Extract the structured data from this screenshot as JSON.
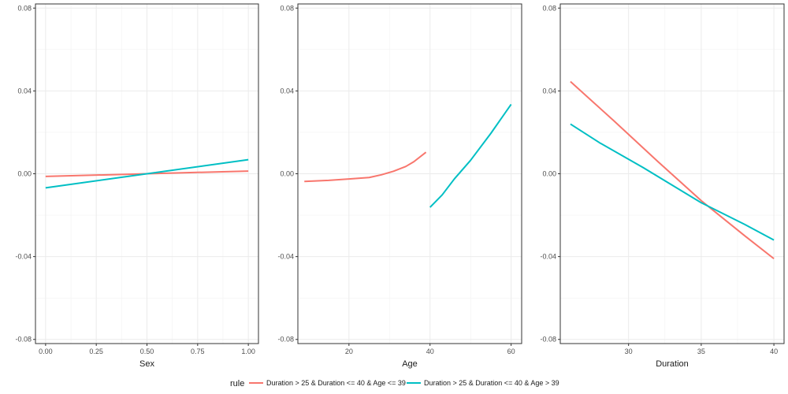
{
  "chart_data": [
    {
      "type": "line",
      "xlabel": "Sex",
      "ylabel": "",
      "xlim": [
        -0.05,
        1.05
      ],
      "ylim": [
        -0.082,
        0.082
      ],
      "xticks": [
        "0.00",
        "0.25",
        "0.50",
        "0.75",
        "1.00"
      ],
      "xtick_values": [
        0,
        0.25,
        0.5,
        0.75,
        1.0
      ],
      "yticks": [
        "-0.08",
        "-0.04",
        "0.00",
        "0.04",
        "0.08"
      ],
      "ytick_values": [
        -0.08,
        -0.04,
        0.0,
        0.04,
        0.08
      ],
      "grid": true,
      "series": [
        {
          "name": "Duration > 25 & Duration <= 40 & Age <= 39",
          "color": "#F8766D",
          "x": [
            0,
            1
          ],
          "y": [
            -0.0013,
            0.0013
          ]
        },
        {
          "name": "Duration > 25 & Duration <= 40 & Age > 39",
          "color": "#00BFC4",
          "x": [
            0,
            1
          ],
          "y": [
            -0.0068,
            0.0068
          ]
        }
      ]
    },
    {
      "type": "line",
      "xlabel": "Age",
      "ylabel": "",
      "xlim": [
        7.4,
        62.6
      ],
      "ylim": [
        -0.082,
        0.082
      ],
      "xticks": [
        "20",
        "40",
        "60"
      ],
      "xtick_values": [
        20,
        40,
        60
      ],
      "yticks": [
        "-0.08",
        "-0.04",
        "0.00",
        "0.04",
        "0.08"
      ],
      "ytick_values": [
        -0.08,
        -0.04,
        0.0,
        0.04,
        0.08
      ],
      "grid": true,
      "series": [
        {
          "name": "Duration > 25 & Duration <= 40 & Age <= 39",
          "color": "#F8766D",
          "x": [
            9,
            15,
            20,
            25,
            28,
            31,
            34,
            36,
            39
          ],
          "y": [
            -0.0037,
            -0.0032,
            -0.0025,
            -0.0018,
            -0.0005,
            0.0012,
            0.0035,
            0.0058,
            0.0104
          ]
        },
        {
          "name": "Duration > 25 & Duration <= 40 & Age > 39",
          "color": "#00BFC4",
          "x": [
            40,
            43,
            46,
            50,
            55,
            60
          ],
          "y": [
            -0.0162,
            -0.0102,
            -0.0025,
            0.0065,
            0.0195,
            0.0335
          ]
        }
      ]
    },
    {
      "type": "line",
      "xlabel": "Duration",
      "ylabel": "",
      "xlim": [
        25.3,
        40.7
      ],
      "ylim": [
        -0.082,
        0.082
      ],
      "xticks": [
        "30",
        "35",
        "40"
      ],
      "xtick_values": [
        30,
        35,
        40
      ],
      "yticks": [
        "-0.08",
        "-0.04",
        "0.00",
        "0.04",
        "0.08"
      ],
      "ytick_values": [
        -0.08,
        -0.04,
        0.0,
        0.04,
        0.08
      ],
      "grid": true,
      "series": [
        {
          "name": "Duration > 25 & Duration <= 40 & Age <= 39",
          "color": "#F8766D",
          "x": [
            26,
            29,
            32,
            35,
            38,
            40
          ],
          "y": [
            0.0445,
            0.0255,
            0.006,
            -0.013,
            -0.03,
            -0.041
          ]
        },
        {
          "name": "Duration > 25 & Duration <= 40 & Age > 39",
          "color": "#00BFC4",
          "x": [
            26,
            28,
            31,
            35,
            38,
            40
          ],
          "y": [
            0.024,
            0.015,
            0.003,
            -0.014,
            -0.0245,
            -0.032
          ]
        }
      ]
    }
  ],
  "legend": {
    "title": "rule",
    "placement": "bottom",
    "entries": [
      {
        "label": "Duration > 25 & Duration <= 40 & Age <= 39",
        "color": "#F8766D"
      },
      {
        "label": "Duration > 25 & Duration <= 40 & Age > 39",
        "color": "#00BFC4"
      }
    ]
  }
}
